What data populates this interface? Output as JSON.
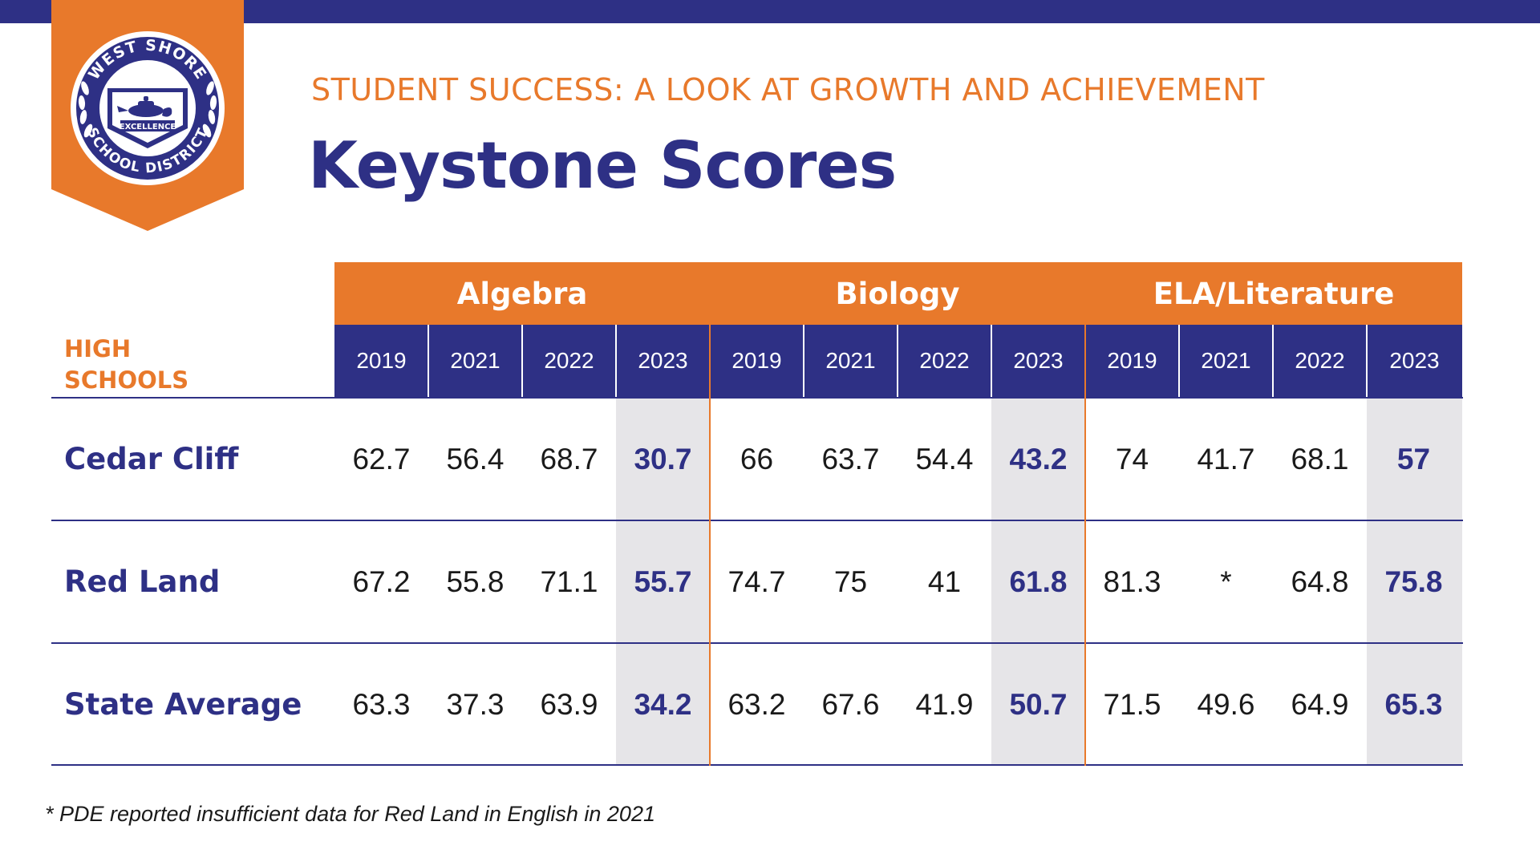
{
  "header": {
    "district_seal_text": [
      "WEST SHORE",
      "SCHOOL DISTRICT",
      "EXCELLENCE"
    ],
    "subtitle": "STUDENT SUCCESS: A LOOK AT GROWTH AND ACHIEVEMENT",
    "title": "Keystone Scores"
  },
  "colors": {
    "navy": "#2e3085",
    "orange": "#e8792b",
    "highlight_bg": "#e6e5e8"
  },
  "table": {
    "row_header": [
      "HIGH",
      "SCHOOLS"
    ],
    "subjects": [
      {
        "name": "Algebra",
        "years": [
          "2019",
          "2021",
          "2022",
          "2023"
        ]
      },
      {
        "name": "Biology",
        "years": [
          "2019",
          "2021",
          "2022",
          "2023"
        ]
      },
      {
        "name": "ELA/Literature",
        "years": [
          "2019",
          "2021",
          "2022",
          "2023"
        ]
      }
    ],
    "highlighted_year": "2023",
    "rows": [
      {
        "school": "Cedar Cliff",
        "values": [
          "62.7",
          "56.4",
          "68.7",
          "30.7",
          "66",
          "63.7",
          "54.4",
          "43.2",
          "74",
          "41.7",
          "68.1",
          "57"
        ]
      },
      {
        "school": "Red Land",
        "values": [
          "67.2",
          "55.8",
          "71.1",
          "55.7",
          "74.7",
          "75",
          "41",
          "61.8",
          "81.3",
          "*",
          "64.8",
          "75.8"
        ]
      },
      {
        "school": "State Average",
        "values": [
          "63.3",
          "37.3",
          "63.9",
          "34.2",
          "63.2",
          "67.6",
          "41.9",
          "50.7",
          "71.5",
          "49.6",
          "64.9",
          "65.3"
        ]
      }
    ]
  },
  "footnote": "* PDE reported insufficient data for Red Land in English in 2021"
}
